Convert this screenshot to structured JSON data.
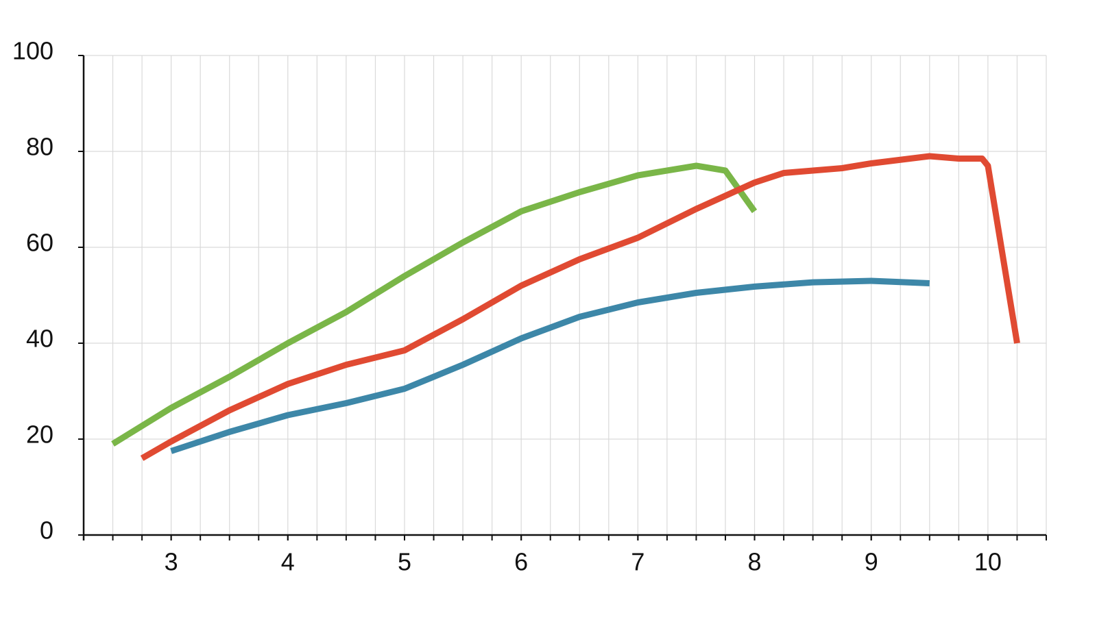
{
  "chart_data": {
    "type": "line",
    "xlim": [
      2.25,
      10.5
    ],
    "xticks": [
      3,
      4,
      5,
      6,
      7,
      8,
      9,
      10
    ],
    "x_grid_step": 0.25,
    "ylim": [
      0,
      100
    ],
    "yticks": [
      0,
      20,
      40,
      60,
      80,
      100
    ],
    "grid": true,
    "series": [
      {
        "color": "#7ab648",
        "x": [
          2.5,
          3,
          3.5,
          4,
          4.5,
          5,
          5.5,
          6,
          6.5,
          7,
          7.5,
          7.75,
          8
        ],
        "values": [
          19,
          26.5,
          33,
          40,
          46.5,
          54,
          61,
          67.5,
          71.5,
          75,
          77,
          76,
          67.5
        ]
      },
      {
        "color": "#e04a32",
        "x": [
          2.75,
          3,
          3.5,
          4,
          4.5,
          5,
          5.5,
          6,
          6.5,
          7,
          7.5,
          8,
          8.25,
          8.75,
          9,
          9.5,
          9.75,
          9.95,
          10,
          10.25
        ],
        "values": [
          16,
          19.5,
          26,
          31.5,
          35.5,
          38.5,
          45,
          52,
          57.5,
          62,
          68,
          73.5,
          75.5,
          76.5,
          77.5,
          79,
          78.5,
          78.5,
          77,
          40
        ]
      },
      {
        "color": "#3d87a8",
        "x": [
          3,
          3.5,
          4,
          4.5,
          5,
          5.5,
          6,
          6.5,
          7,
          7.5,
          8,
          8.5,
          9,
          9.5
        ],
        "values": [
          17.5,
          21.5,
          25,
          27.5,
          30.5,
          35.5,
          41,
          45.5,
          48.5,
          50.5,
          51.8,
          52.7,
          53,
          52.5
        ]
      }
    ]
  }
}
